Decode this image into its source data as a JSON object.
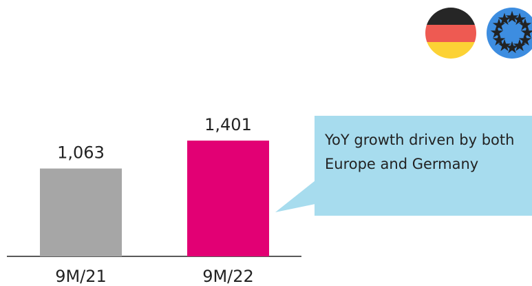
{
  "chart_data": {
    "type": "bar",
    "categories": [
      "9M/21",
      "9M/22"
    ],
    "values": [
      1063,
      1401
    ],
    "value_labels": [
      "1,063",
      "1,401"
    ],
    "colors": [
      "#a6a6a6",
      "#e20074"
    ],
    "annotation": "YoY growth driven by both Europe and Germany"
  }
}
